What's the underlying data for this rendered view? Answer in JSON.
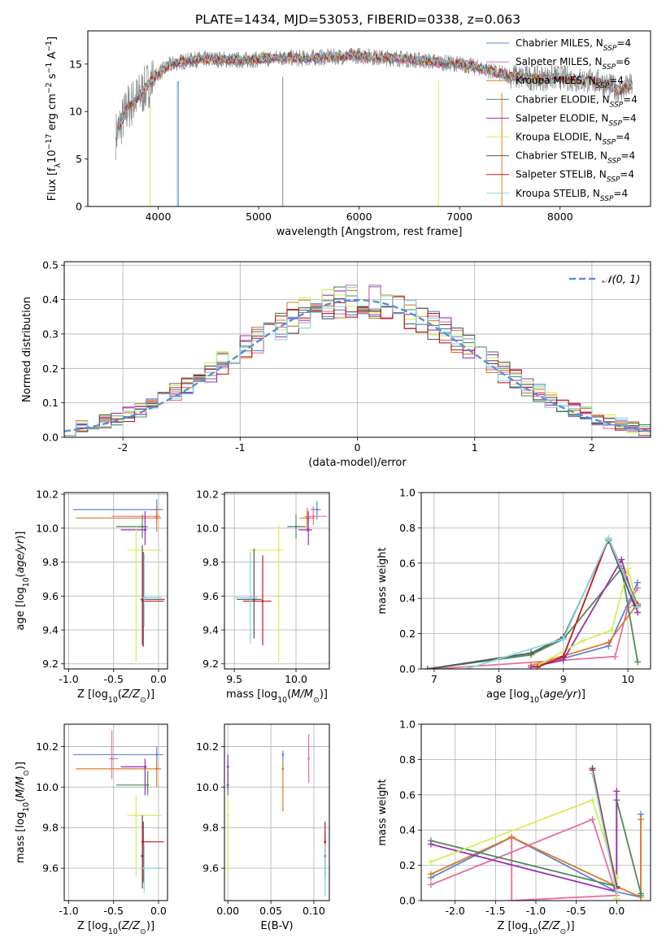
{
  "title": "PLATE=1434, MJD=53053, FIBERID=0338, z=0.063",
  "colors": {
    "Chabrier MILES": "#5b86d6",
    "Salpeter MILES": "#e86f9c",
    "Kroupa MILES": "#e07a2a",
    "Chabrier ELODIE": "#4f8a5c",
    "Salpeter ELODIE": "#9b2fb8",
    "Kroupa ELODIE": "#d4ee58",
    "Chabrier STELIB": "#555555",
    "Salpeter STELIB": "#c41a1a",
    "Kroupa STELIB": "#86d6e0",
    "data": "#888888",
    "gauss": "#5b8fd6"
  },
  "chart_data": [
    {
      "id": "spectrum",
      "type": "line",
      "xlabel": "wavelength [Angstrom, rest frame]",
      "ylabel": "Flux [f_λ10^-17 erg cm^-2 s^-1 A^-1]",
      "xlim": [
        3300,
        8900
      ],
      "ylim": [
        0,
        18.5
      ],
      "xticks": [
        4000,
        5000,
        6000,
        7000,
        8000
      ],
      "yticks": [
        0,
        5,
        10,
        15
      ],
      "continuum": [
        [
          3580,
          7.5
        ],
        [
          3700,
          10.5
        ],
        [
          3800,
          11.5
        ],
        [
          3900,
          12.8
        ],
        [
          4000,
          14.0
        ],
        [
          4100,
          14.8
        ],
        [
          4200,
          15.2
        ],
        [
          4400,
          15.5
        ],
        [
          4600,
          15.5
        ],
        [
          4800,
          15.4
        ],
        [
          5000,
          15.5
        ],
        [
          5200,
          15.7
        ],
        [
          5400,
          15.6
        ],
        [
          5600,
          15.7
        ],
        [
          5800,
          15.8
        ],
        [
          6000,
          15.9
        ],
        [
          6200,
          15.7
        ],
        [
          6400,
          15.6
        ],
        [
          6600,
          15.4
        ],
        [
          6800,
          15.2
        ],
        [
          7000,
          15.0
        ],
        [
          7200,
          14.6
        ],
        [
          7400,
          14.0
        ],
        [
          7600,
          13.6
        ],
        [
          7800,
          13.5
        ],
        [
          8000,
          13.6
        ],
        [
          8200,
          13.3
        ],
        [
          8400,
          13.1
        ],
        [
          8600,
          12.2
        ],
        [
          8720,
          12.8
        ]
      ],
      "legend": [
        {
          "imf": "Chabrier MILES",
          "nssp": "4"
        },
        {
          "imf": "Salpeter MILES",
          "nssp": "6"
        },
        {
          "imf": "Kroupa MILES",
          "nssp": "4"
        },
        {
          "imf": "Chabrier ELODIE",
          "nssp": "4"
        },
        {
          "imf": "Salpeter ELODIE",
          "nssp": "4"
        },
        {
          "imf": "Kroupa ELODIE",
          "nssp": "4"
        },
        {
          "imf": "Chabrier STELIB",
          "nssp": "4"
        },
        {
          "imf": "Salpeter STELIB",
          "nssp": "4"
        },
        {
          "imf": "Kroupa STELIB",
          "nssp": "4"
        }
      ]
    },
    {
      "id": "residuals",
      "type": "step",
      "xlabel": "(data-model)/error",
      "ylabel": "Normed distribution",
      "xlim": [
        -2.5,
        2.5
      ],
      "ylim": [
        0,
        0.51
      ],
      "xticks": [
        -2,
        -1,
        0,
        1,
        2
      ],
      "yticks": [
        0.0,
        0.1,
        0.2,
        0.3,
        0.4,
        0.5
      ],
      "gauss_label": "𝒩(0, 1)",
      "bin_width": 0.1
    },
    {
      "id": "age_vs_Z",
      "type": "errorbar",
      "xlabel": "Z [log10(Z/Z⊙)]",
      "ylabel": "age [log10(age/yr)]",
      "xlim": [
        -1.05,
        0.1
      ],
      "ylim": [
        9.17,
        10.21
      ],
      "xticks": [
        -1.0,
        -0.5,
        0.0
      ],
      "yticks": [
        9.2,
        9.4,
        9.6,
        9.8,
        10.0,
        10.2
      ],
      "points": [
        {
          "m": "Chabrier MILES",
          "x": -0.02,
          "xe": [
            -0.95,
            0.05
          ],
          "y": 10.11,
          "ye": [
            10.05,
            10.17
          ]
        },
        {
          "m": "Salpeter MILES",
          "x": -0.02,
          "xe": [
            -0.52,
            0.02
          ],
          "y": 10.07,
          "ye": [
            10.03,
            10.12
          ]
        },
        {
          "m": "Kroupa MILES",
          "x": -0.02,
          "xe": [
            -0.92,
            0.03
          ],
          "y": 10.06,
          "ye": [
            9.98,
            10.13
          ]
        },
        {
          "m": "Chabrier ELODIE",
          "x": -0.18,
          "xe": [
            -0.47,
            -0.12
          ],
          "y": 10.01,
          "ye": [
            9.94,
            10.08
          ]
        },
        {
          "m": "Salpeter ELODIE",
          "x": -0.15,
          "xe": [
            -0.42,
            -0.13
          ],
          "y": 9.99,
          "ye": [
            9.9,
            10.1
          ]
        },
        {
          "m": "Kroupa ELODIE",
          "x": -0.25,
          "xe": [
            -0.35,
            0.03
          ],
          "y": 9.87,
          "ye": [
            9.21,
            10.02
          ]
        },
        {
          "m": "Chabrier STELIB",
          "x": -0.18,
          "xe": [
            -0.2,
            0.07
          ],
          "y": 9.58,
          "ye": [
            9.31,
            9.9
          ]
        },
        {
          "m": "Salpeter STELIB",
          "x": -0.17,
          "xe": [
            -0.19,
            0.06
          ],
          "y": 9.57,
          "ye": [
            9.3,
            9.86
          ]
        },
        {
          "m": "Kroupa STELIB",
          "x": -0.16,
          "xe": [
            -0.18,
            0.04
          ],
          "y": 9.59,
          "ye": [
            9.42,
            9.85
          ]
        }
      ]
    },
    {
      "id": "age_vs_mass",
      "type": "errorbar",
      "xlabel": "mass [log10(M/M⊙)]",
      "ylabel": "",
      "xlim": [
        9.42,
        10.27
      ],
      "ylim": [
        9.17,
        10.21
      ],
      "xticks": [
        9.5,
        10.0
      ],
      "yticks": [
        9.2,
        9.4,
        9.6,
        9.8,
        10.0,
        10.2
      ],
      "points": [
        {
          "m": "Chabrier MILES",
          "x": 10.17,
          "xe": [
            10.12,
            10.2
          ],
          "y": 10.11,
          "ye": [
            10.05,
            10.16
          ]
        },
        {
          "m": "Salpeter MILES",
          "x": 10.14,
          "xe": [
            10.07,
            10.25
          ],
          "y": 10.07,
          "ye": [
            10.02,
            10.13
          ]
        },
        {
          "m": "Kroupa MILES",
          "x": 10.09,
          "xe": [
            10.03,
            10.15
          ],
          "y": 10.06,
          "ye": [
            9.98,
            10.12
          ]
        },
        {
          "m": "Chabrier ELODIE",
          "x": 10.0,
          "xe": [
            9.93,
            10.08
          ],
          "y": 10.01,
          "ye": [
            9.94,
            10.08
          ]
        },
        {
          "m": "Salpeter ELODIE",
          "x": 10.1,
          "xe": [
            10.02,
            10.13
          ],
          "y": 9.99,
          "ye": [
            9.9,
            10.1
          ]
        },
        {
          "m": "Kroupa ELODIE",
          "x": 9.86,
          "xe": [
            9.62,
            9.9
          ],
          "y": 9.87,
          "ye": [
            9.21,
            10.02
          ]
        },
        {
          "m": "Chabrier STELIB",
          "x": 9.66,
          "xe": [
            9.52,
            9.72
          ],
          "y": 9.58,
          "ye": [
            9.35,
            9.88
          ]
        },
        {
          "m": "Salpeter STELIB",
          "x": 9.73,
          "xe": [
            9.57,
            9.8
          ],
          "y": 9.57,
          "ye": [
            9.31,
            9.84
          ]
        },
        {
          "m": "Kroupa STELIB",
          "x": 9.63,
          "xe": [
            9.5,
            9.69
          ],
          "y": 9.59,
          "ye": [
            9.32,
            9.86
          ]
        }
      ]
    },
    {
      "id": "mass_weight_vs_age",
      "type": "line",
      "xlabel": "age [log10(age/yr)]",
      "ylabel": "mass weight",
      "xlim": [
        6.8,
        10.35
      ],
      "ylim": [
        0,
        1.0
      ],
      "xticks": [
        7,
        8,
        9,
        10
      ],
      "yticks": [
        0.0,
        0.2,
        0.4,
        0.6,
        0.8,
        1.0
      ],
      "series": [
        {
          "m": "Chabrier MILES",
          "x": [
            8.6,
            9.7,
            10.15
          ],
          "y": [
            0.02,
            0.13,
            0.49
          ]
        },
        {
          "m": "Salpeter MILES",
          "x": [
            7.0,
            9.8,
            10.0,
            10.15
          ],
          "y": [
            0.0,
            0.07,
            0.35,
            0.46
          ]
        },
        {
          "m": "Kroupa MILES",
          "x": [
            8.5,
            9.7,
            10.15
          ],
          "y": [
            0.02,
            0.15,
            0.37
          ]
        },
        {
          "m": "Chabrier ELODIE",
          "x": [
            6.9,
            8.5,
            9.0,
            9.9,
            10.15
          ],
          "y": [
            0.0,
            0.08,
            0.17,
            0.57,
            0.04
          ]
        },
        {
          "m": "Salpeter ELODIE",
          "x": [
            8.5,
            9.0,
            9.9,
            10.15
          ],
          "y": [
            0.01,
            0.05,
            0.62,
            0.32
          ]
        },
        {
          "m": "Kroupa ELODIE",
          "x": [
            8.6,
            9.3,
            9.75,
            10.0,
            10.15
          ],
          "y": [
            0.02,
            0.16,
            0.22,
            0.57,
            0.35
          ]
        },
        {
          "m": "Chabrier STELIB",
          "x": [
            6.9,
            8.5,
            9.0,
            9.7,
            10.1
          ],
          "y": [
            0.0,
            0.09,
            0.18,
            0.73,
            0.36
          ]
        },
        {
          "m": "Salpeter STELIB",
          "x": [
            8.6,
            9.0,
            9.7,
            10.15
          ],
          "y": [
            0.01,
            0.07,
            0.74,
            0.36
          ]
        },
        {
          "m": "Kroupa STELIB",
          "x": [
            7.5,
            9.0,
            9.7,
            10.15
          ],
          "y": [
            0.0,
            0.17,
            0.74,
            0.35
          ]
        }
      ]
    },
    {
      "id": "mass_vs_Z",
      "type": "errorbar",
      "xlabel": "Z [log10(Z/Z⊙)]",
      "ylabel": "mass [log10(M/M⊙)]",
      "xlim": [
        -1.05,
        0.1
      ],
      "ylim": [
        9.44,
        10.31
      ],
      "xticks": [
        -1.0,
        -0.5,
        0.0
      ],
      "yticks": [
        9.6,
        9.8,
        10.0,
        10.2
      ],
      "points": [
        {
          "m": "Chabrier MILES",
          "x": -0.02,
          "xe": [
            -0.95,
            0.05
          ],
          "y": 10.16,
          "ye": [
            10.1,
            10.2
          ]
        },
        {
          "m": "Salpeter MILES",
          "x": -0.52,
          "xe": [
            -0.55,
            -0.45
          ],
          "y": 10.14,
          "ye": [
            10.04,
            10.28
          ]
        },
        {
          "m": "Kroupa MILES",
          "x": -0.02,
          "xe": [
            -0.92,
            0.03
          ],
          "y": 10.09,
          "ye": [
            10.0,
            10.14
          ]
        },
        {
          "m": "Chabrier ELODIE",
          "x": -0.12,
          "xe": [
            -0.47,
            -0.12
          ],
          "y": 10.01,
          "ye": [
            9.96,
            10.08
          ]
        },
        {
          "m": "Salpeter ELODIE",
          "x": -0.15,
          "xe": [
            -0.42,
            -0.13
          ],
          "y": 10.1,
          "ye": [
            9.96,
            10.14
          ]
        },
        {
          "m": "Kroupa ELODIE",
          "x": -0.25,
          "xe": [
            -0.35,
            0.03
          ],
          "y": 9.86,
          "ye": [
            9.56,
            9.96
          ]
        },
        {
          "m": "Chabrier STELIB",
          "x": -0.18,
          "xe": [
            -0.2,
            -0.17
          ],
          "y": 9.66,
          "ye": [
            9.5,
            9.86
          ]
        },
        {
          "m": "Salpeter STELIB",
          "x": -0.17,
          "xe": [
            -0.19,
            0.06
          ],
          "y": 9.73,
          "ye": [
            9.53,
            9.83
          ]
        },
        {
          "m": "Kroupa STELIB",
          "x": -0.16,
          "xe": [
            -0.18,
            0.04
          ],
          "y": 9.6,
          "ye": [
            9.48,
            9.72
          ]
        }
      ]
    },
    {
      "id": "mass_vs_ebv",
      "type": "errorbar",
      "xlabel": "E(B-V)",
      "ylabel": "",
      "xlim": [
        -0.004,
        0.118
      ],
      "ylim": [
        9.44,
        10.31
      ],
      "xticks": [
        0.0,
        0.05,
        0.1
      ],
      "yticks": [
        9.6,
        9.8,
        10.0,
        10.2
      ],
      "points": [
        {
          "m": "Chabrier MILES",
          "x": 0.064,
          "y": 10.16,
          "ye": [
            10.1,
            10.18
          ]
        },
        {
          "m": "Salpeter MILES",
          "x": 0.094,
          "y": 10.14,
          "ye": [
            10.02,
            10.26
          ]
        },
        {
          "m": "Kroupa MILES",
          "x": 0.064,
          "y": 10.09,
          "ye": [
            9.88,
            10.12
          ]
        },
        {
          "m": "Chabrier ELODIE",
          "x": 0.0,
          "y": 10.01,
          "ye": [
            9.96,
            10.08
          ]
        },
        {
          "m": "Salpeter ELODIE",
          "x": 0.0,
          "y": 10.1,
          "ye": [
            9.99,
            10.16
          ]
        },
        {
          "m": "Kroupa ELODIE",
          "x": 0.0,
          "y": 9.86,
          "ye": [
            9.56,
            9.96
          ]
        },
        {
          "m": "Chabrier STELIB",
          "x": 0.113,
          "y": 9.66,
          "ye": [
            9.55,
            9.78
          ]
        },
        {
          "m": "Salpeter STELIB",
          "x": 0.113,
          "y": 9.73,
          "ye": [
            9.6,
            9.83
          ]
        },
        {
          "m": "Kroupa STELIB",
          "x": 0.113,
          "y": 9.6,
          "ye": [
            9.46,
            9.72
          ]
        }
      ]
    },
    {
      "id": "mass_weight_vs_Z",
      "type": "line",
      "xlabel": "Z [log10(Z/Z⊙)]",
      "ylabel": "mass weight",
      "xlim": [
        -2.42,
        0.42
      ],
      "ylim": [
        0,
        1.0
      ],
      "xticks": [
        -2.0,
        -1.5,
        -1.0,
        -0.5,
        0.0
      ],
      "yticks": [
        0.0,
        0.2,
        0.4,
        0.6,
        0.8,
        1.0
      ],
      "series": [
        {
          "m": "Chabrier MILES",
          "x": [
            -2.3,
            -1.3,
            0.0,
            0.3,
            0.3
          ],
          "y": [
            0.13,
            0.36,
            0.05,
            0.02,
            0.49
          ]
        },
        {
          "m": "Salpeter MILES",
          "x": [
            -2.3,
            -0.3,
            0.0,
            -1.3,
            -1.3
          ],
          "y": [
            0.09,
            0.46,
            0.03,
            0.0,
            0.36
          ]
        },
        {
          "m": "Kroupa MILES",
          "x": [
            -2.3,
            -1.3,
            0.0,
            0.3,
            0.3
          ],
          "y": [
            0.15,
            0.36,
            0.08,
            0.02,
            0.46
          ]
        },
        {
          "m": "Chabrier ELODIE",
          "x": [
            -2.3,
            0.0,
            0.0,
            0.3,
            0.3
          ],
          "y": [
            0.34,
            0.08,
            0.57,
            0.04,
            0.03
          ]
        },
        {
          "m": "Salpeter ELODIE",
          "x": [
            -2.3,
            0.0,
            0.0,
            0.0
          ],
          "y": [
            0.32,
            0.05,
            0.62,
            0.01
          ]
        },
        {
          "m": "Kroupa ELODIE",
          "x": [
            -2.3,
            -0.3,
            0.0,
            0.0
          ],
          "y": [
            0.22,
            0.57,
            0.13,
            0.01
          ]
        },
        {
          "m": "Chabrier STELIB",
          "x": [
            -0.3,
            0.0
          ],
          "y": [
            0.75,
            0.08
          ]
        },
        {
          "m": "Salpeter STELIB",
          "x": [
            -0.3,
            0.0
          ],
          "y": [
            0.74,
            0.07
          ]
        },
        {
          "m": "Kroupa STELIB",
          "x": [
            -0.3,
            0.0
          ],
          "y": [
            0.72,
            0.05
          ]
        }
      ]
    }
  ]
}
